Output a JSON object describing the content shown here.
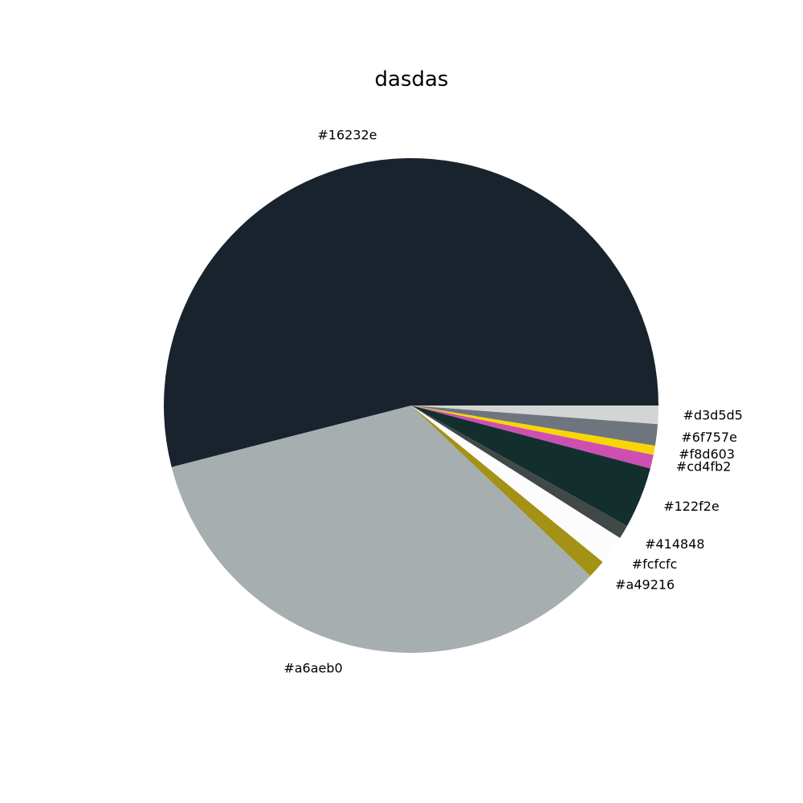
{
  "chart_data": {
    "type": "pie",
    "title": "dasdas",
    "start_angle_deg": 0,
    "direction": "clockwise",
    "slices": [
      {
        "label": "#d3d5d5",
        "value": 1.2,
        "color": "#d3d5d5"
      },
      {
        "label": "#6f757e",
        "value": 1.4,
        "color": "#6f757e"
      },
      {
        "label": "#f8d603",
        "value": 0.6,
        "color": "#f8d603"
      },
      {
        "label": "#cd4fb2",
        "value": 0.9,
        "color": "#cd4fb2"
      },
      {
        "label": "#122f2e",
        "value": 4.0,
        "color": "#122f2e"
      },
      {
        "label": "#414848",
        "value": 0.9,
        "color": "#414848"
      },
      {
        "label": "#fcfcfc",
        "value": 1.9,
        "color": "#fcfcfc"
      },
      {
        "label": "#a49216",
        "value": 1.2,
        "color": "#a49216"
      },
      {
        "label": "#a6aeb0",
        "value": 33.9,
        "color": "#a6aeb0"
      },
      {
        "label": "#16232e",
        "value": 54.0,
        "color": "#18232e"
      }
    ]
  }
}
